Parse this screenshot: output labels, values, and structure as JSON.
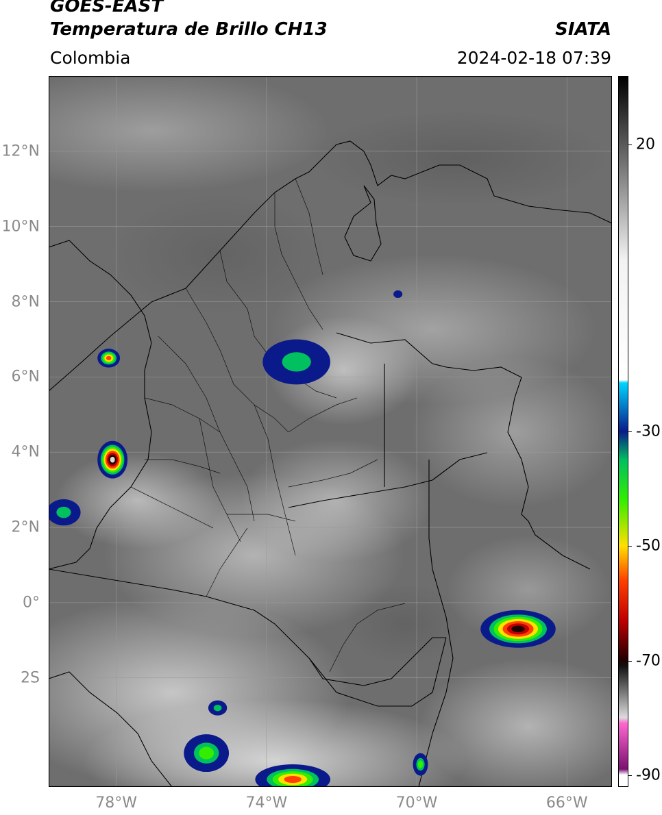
{
  "header": {
    "satellite": "GOES-EAST",
    "product": "Temperatura de Brillo CH13",
    "organization": "SIATA",
    "region": "Colombia",
    "timestamp": "2024-02-18 07:39"
  },
  "map": {
    "projection": "lat-lon",
    "lon_range": [
      -79.8,
      -64.8
    ],
    "lat_range": [
      -4.9,
      14.0
    ],
    "grid": true,
    "lat_ticks": [
      {
        "value": 12,
        "label": "12°N"
      },
      {
        "value": 10,
        "label": "10°N"
      },
      {
        "value": 8,
        "label": "8°N"
      },
      {
        "value": 6,
        "label": "6°N"
      },
      {
        "value": 4,
        "label": "4°N"
      },
      {
        "value": 2,
        "label": "2°N"
      },
      {
        "value": 0,
        "label": "0°"
      },
      {
        "value": -2,
        "label": "2S"
      }
    ],
    "lon_ticks": [
      {
        "value": -78,
        "label": "78°W"
      },
      {
        "value": -74,
        "label": "74°W"
      },
      {
        "value": -70,
        "label": "70°W"
      },
      {
        "value": -66,
        "label": "66°W"
      }
    ],
    "background_color": "#6e6e6e",
    "cold_cloud_cells": [
      {
        "lon": -73.2,
        "lat": 6.4,
        "rx": 0.9,
        "ry": 0.6,
        "min_temp": -35
      },
      {
        "lon": -78.1,
        "lat": 3.8,
        "rx": 0.4,
        "ry": 0.5,
        "min_temp": -75
      },
      {
        "lon": -78.2,
        "lat": 6.5,
        "rx": 0.3,
        "ry": 0.25,
        "min_temp": -58
      },
      {
        "lon": -79.4,
        "lat": 2.4,
        "rx": 0.45,
        "ry": 0.35,
        "min_temp": -40
      },
      {
        "lon": -67.3,
        "lat": -0.7,
        "rx": 1.0,
        "ry": 0.5,
        "min_temp": -72
      },
      {
        "lon": -75.6,
        "lat": -4.0,
        "rx": 0.6,
        "ry": 0.5,
        "min_temp": -42
      },
      {
        "lon": -73.3,
        "lat": -4.7,
        "rx": 1.0,
        "ry": 0.4,
        "min_temp": -58
      },
      {
        "lon": -69.9,
        "lat": -4.3,
        "rx": 0.2,
        "ry": 0.3,
        "min_temp": -42
      },
      {
        "lon": -75.3,
        "lat": -2.8,
        "rx": 0.25,
        "ry": 0.2,
        "min_temp": -35
      },
      {
        "lon": -70.5,
        "lat": 8.2,
        "rx": 0.12,
        "ry": 0.1,
        "min_temp": -30
      }
    ]
  },
  "colorbar": {
    "range": [
      -92,
      32
    ],
    "ticks": [
      {
        "value": 20,
        "label": "20"
      },
      {
        "value": -30,
        "label": "-30"
      },
      {
        "value": -50,
        "label": "-50"
      },
      {
        "value": -70,
        "label": "-70"
      },
      {
        "value": -90,
        "label": "-90"
      }
    ],
    "stops": [
      {
        "t": 32,
        "color": "#000000"
      },
      {
        "t": 0,
        "color": "#f2f2f2"
      },
      {
        "t": -21,
        "color": "#ffffff"
      },
      {
        "t": -21.5,
        "color": "#00d5ff"
      },
      {
        "t": -30,
        "color": "#0a1a8a"
      },
      {
        "t": -35,
        "color": "#00c060"
      },
      {
        "t": -42,
        "color": "#33ee00"
      },
      {
        "t": -50,
        "color": "#ffe000"
      },
      {
        "t": -56,
        "color": "#ff4000"
      },
      {
        "t": -63,
        "color": "#c00000"
      },
      {
        "t": -70,
        "color": "#200000"
      },
      {
        "t": -71,
        "color": "#111111"
      },
      {
        "t": -80,
        "color": "#dcdcdc"
      },
      {
        "t": -81,
        "color": "#ff66d0"
      },
      {
        "t": -89,
        "color": "#7a1070"
      },
      {
        "t": -90,
        "color": "#ffffff"
      }
    ]
  }
}
